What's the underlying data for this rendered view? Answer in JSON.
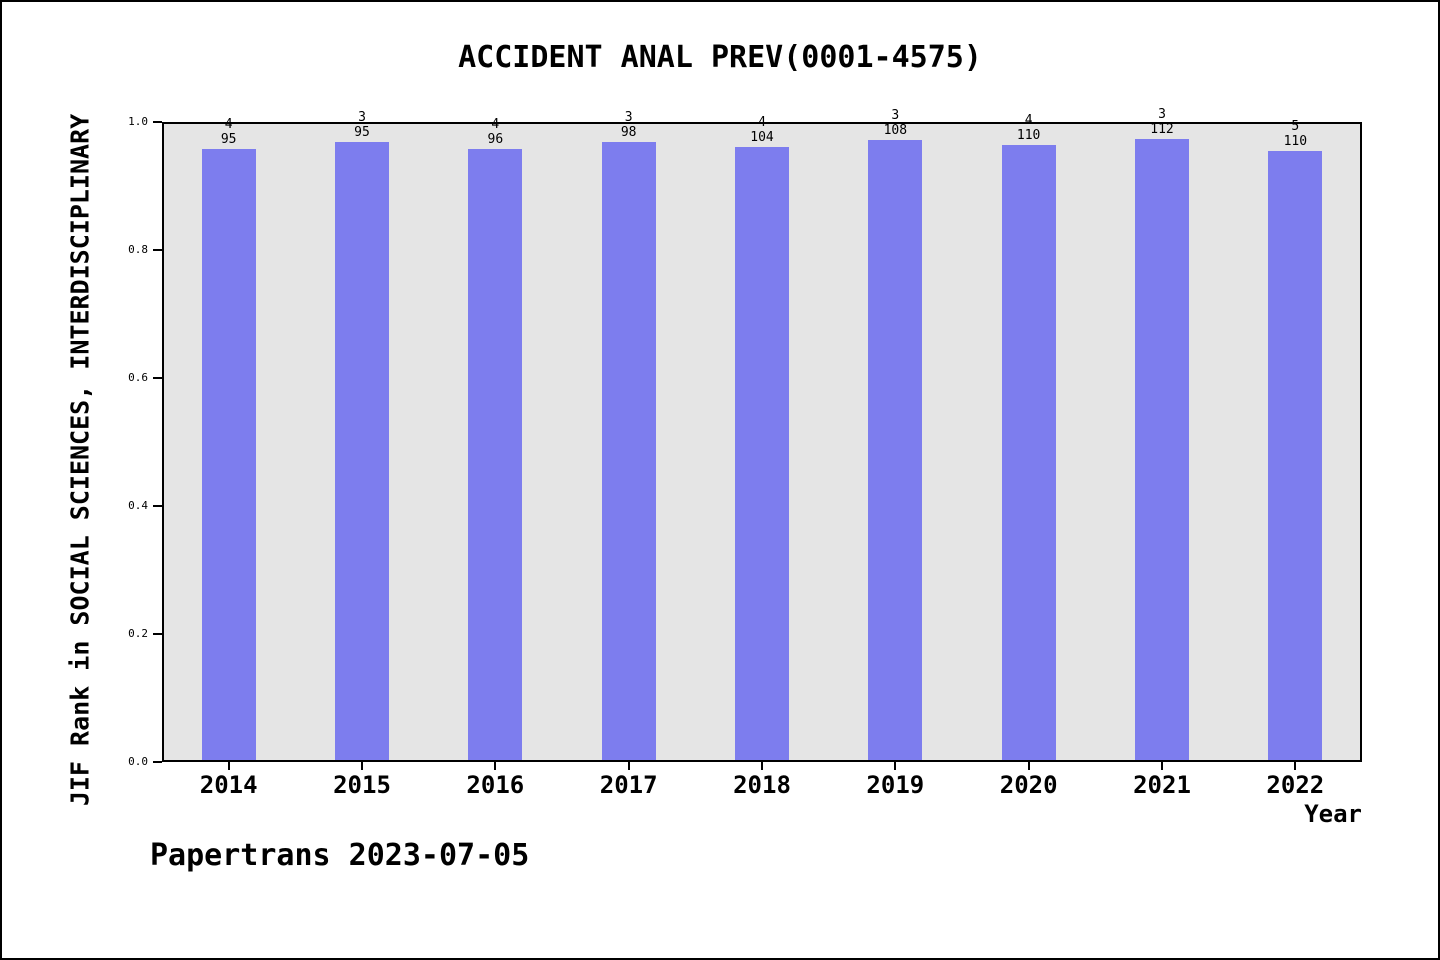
{
  "chart_data": {
    "type": "bar",
    "title": "ACCIDENT ANAL PREV(0001-4575)",
    "xlabel": "Year",
    "ylabel": "JIF Rank in SOCIAL SCIENCES, INTERDISCIPLINARY",
    "categories": [
      "2014",
      "2015",
      "2016",
      "2017",
      "2018",
      "2019",
      "2020",
      "2021",
      "2022"
    ],
    "rank": [
      4,
      3,
      4,
      3,
      4,
      3,
      4,
      3,
      5
    ],
    "total": [
      95,
      95,
      96,
      98,
      104,
      108,
      110,
      112,
      110
    ],
    "values": [
      0.9579,
      0.9684,
      0.9583,
      0.9694,
      0.9615,
      0.9722,
      0.9636,
      0.9732,
      0.9545
    ],
    "ylim": [
      0.0,
      1.0
    ],
    "yticks": [
      0.0,
      0.2,
      0.4,
      0.6,
      0.8,
      1.0
    ],
    "grid": false,
    "legend": false,
    "bar_color": "#7d7dee",
    "plot_bg": "#e5e5e5",
    "axis_color": "#000000"
  },
  "footer": {
    "text": "Papertrans 2023-07-05"
  }
}
